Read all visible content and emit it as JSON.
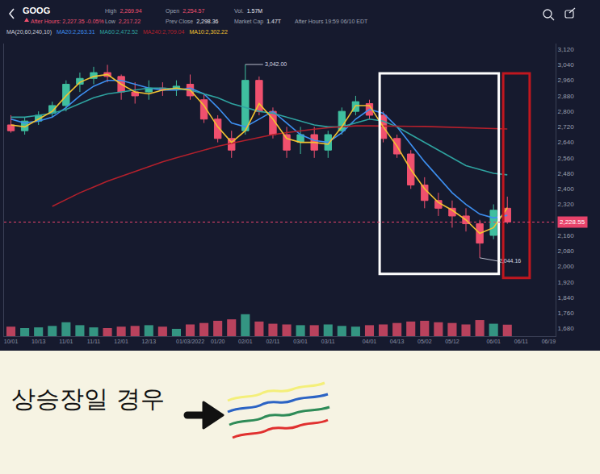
{
  "header": {
    "symbol": "GOOG",
    "after_hours": "After Hours: 2,227.35 -0.05%",
    "stats": [
      [
        "High",
        "2,269.94"
      ],
      [
        "Low",
        "2,217.22"
      ],
      [
        "Open",
        "2,254.57"
      ],
      [
        "Prev Close",
        "2,298.36"
      ],
      [
        "Vol.",
        "1.57M"
      ],
      [
        "Market Cap",
        "1.47T"
      ]
    ],
    "time": "After Hours 19:59 06/10 EDT"
  },
  "chart_data": {
    "type": "candlestick",
    "legend": "top-left",
    "legend_title": "MA(20,60,240,10)",
    "grid": false,
    "categories": [
      "10/01",
      null,
      "10/13",
      null,
      "11/01",
      null,
      "11/11",
      null,
      "12/01",
      null,
      "12/13",
      null,
      null,
      "01/03/2022",
      null,
      "01/20",
      null,
      "02/01",
      null,
      "02/11",
      null,
      "03/01",
      null,
      "03/11",
      null,
      null,
      "04/01",
      null,
      "04/13",
      null,
      "05/02",
      null,
      "05/12",
      null,
      null,
      "06/01",
      null,
      "06/11",
      null,
      "06/19"
    ],
    "series": [
      {
        "type": "bar",
        "axis": "y2",
        "values": [
          1.3,
          1.1,
          1.2,
          1.4,
          1.9,
          1.5,
          1.2,
          1.1,
          1.3,
          1.4,
          1.5,
          1.3,
          1.0,
          1.6,
          1.8,
          2.1,
          2.3,
          3.0,
          2.0,
          1.7,
          1.6,
          1.5,
          1.5,
          1.6,
          1.4,
          1.3,
          1.5,
          1.6,
          1.8,
          2.0,
          2.1,
          1.9,
          1.8,
          1.6,
          2.2,
          1.7,
          1.57,
          null,
          null,
          null
        ]
      },
      {
        "name": "GOOG",
        "type": "candlestick",
        "open": [
          2730,
          2700,
          2750,
          2790,
          2830,
          2940,
          2970,
          3000,
          2980,
          2900,
          2900,
          2920,
          2920,
          2940,
          2860,
          2760,
          2660,
          2700,
          2960,
          2800,
          2680,
          2640,
          2680,
          2600,
          2700,
          2800,
          2840,
          2780,
          2660,
          2580,
          2420,
          2340,
          2300,
          2260,
          2220,
          2160,
          2300,
          null,
          null,
          null
        ],
        "high": [
          2780,
          2770,
          2800,
          2850,
          2960,
          3000,
          3030,
          3040,
          2990,
          2950,
          2960,
          2950,
          2960,
          2990,
          2890,
          2780,
          2700,
          3042,
          2980,
          2820,
          2720,
          2720,
          2720,
          2700,
          2820,
          2880,
          2860,
          2800,
          2680,
          2600,
          2460,
          2380,
          2340,
          2300,
          2240,
          2320,
          2360,
          null,
          null,
          null
        ],
        "low": [
          2690,
          2680,
          2730,
          2770,
          2800,
          2900,
          2940,
          2950,
          2860,
          2840,
          2860,
          2880,
          2880,
          2860,
          2740,
          2640,
          2560,
          2680,
          2780,
          2660,
          2560,
          2580,
          2560,
          2560,
          2680,
          2780,
          2760,
          2640,
          2560,
          2400,
          2300,
          2260,
          2200,
          2180,
          2044.16,
          2140,
          2220,
          null,
          null,
          null
        ],
        "close": [
          2700,
          2750,
          2780,
          2830,
          2940,
          2970,
          3000,
          2980,
          2900,
          2880,
          2920,
          2910,
          2930,
          2880,
          2760,
          2660,
          2600,
          2960,
          2800,
          2680,
          2600,
          2680,
          2600,
          2680,
          2800,
          2850,
          2780,
          2660,
          2580,
          2420,
          2340,
          2300,
          2260,
          2220,
          2120,
          2290,
          2228.55,
          null,
          null,
          null
        ]
      },
      {
        "name": "MA20:2,263.31",
        "type": "line",
        "color": "#3d8ff0",
        "values": [
          2760,
          2740,
          2750,
          2770,
          2820,
          2880,
          2930,
          2960,
          2960,
          2940,
          2920,
          2910,
          2910,
          2920,
          2890,
          2820,
          2740,
          2720,
          2760,
          2800,
          2740,
          2680,
          2650,
          2640,
          2690,
          2760,
          2810,
          2790,
          2720,
          2630,
          2540,
          2460,
          2380,
          2320,
          2270,
          2250,
          2263.31,
          null,
          null,
          null
        ]
      },
      {
        "name": "MA60:2,472.52",
        "type": "line",
        "color": "#2fa3a0",
        "values": [
          2770,
          2770,
          2780,
          2790,
          2810,
          2840,
          2870,
          2890,
          2900,
          2910,
          2920,
          2920,
          2915,
          2910,
          2890,
          2870,
          2840,
          2820,
          2800,
          2790,
          2770,
          2750,
          2730,
          2720,
          2720,
          2740,
          2760,
          2750,
          2720,
          2680,
          2640,
          2600,
          2560,
          2520,
          2500,
          2480,
          2472.52,
          null,
          null,
          null
        ]
      },
      {
        "name": "MA240:2,709.04",
        "type": "line",
        "color": "#b3202c",
        "values": [
          null,
          null,
          null,
          2310,
          2345,
          2380,
          2410,
          2440,
          2465,
          2490,
          2515,
          2540,
          2560,
          2580,
          2600,
          2620,
          2635,
          2650,
          2665,
          2680,
          2690,
          2700,
          2708,
          2715,
          2720,
          2725,
          2725,
          2725,
          2725,
          2725,
          2722,
          2720,
          2718,
          2715,
          2713,
          2711,
          2709.04,
          null,
          null,
          null
        ]
      },
      {
        "name": "MA10:2,302.22",
        "type": "line",
        "color": "#f2c230",
        "values": [
          2730,
          2720,
          2760,
          2800,
          2880,
          2950,
          2980,
          2990,
          2940,
          2900,
          2890,
          2910,
          2920,
          2910,
          2830,
          2720,
          2640,
          2700,
          2840,
          2760,
          2660,
          2640,
          2640,
          2630,
          2720,
          2830,
          2830,
          2720,
          2620,
          2500,
          2400,
          2330,
          2290,
          2240,
          2170,
          2200,
          2302.22,
          null,
          null,
          null
        ]
      }
    ],
    "ylim": [
      1640,
      3150
    ],
    "yticks": [
      {
        "value": 1680,
        "label": "1,680"
      },
      {
        "value": 1760,
        "label": "1,760"
      },
      {
        "value": 1840,
        "label": "1,840"
      },
      {
        "value": 1920,
        "label": "1,920"
      },
      {
        "value": 2000,
        "label": "2,000"
      },
      {
        "value": 2080,
        "label": "2,080"
      },
      {
        "value": 2160,
        "label": "2,160"
      },
      {
        "value": 2320,
        "label": "2,320"
      },
      {
        "value": 2400,
        "label": "2,400"
      },
      {
        "value": 2480,
        "label": "2,480"
      },
      {
        "value": 2560,
        "label": "2,560"
      },
      {
        "value": 2640,
        "label": "2,640"
      },
      {
        "value": 2720,
        "label": "2,720"
      },
      {
        "value": 2800,
        "label": "2,800"
      },
      {
        "value": 2880,
        "label": "2,880"
      },
      {
        "value": 2960,
        "label": "2,960"
      },
      {
        "value": 3040,
        "label": "3,040"
      },
      {
        "value": 3120,
        "label": "3,120"
      }
    ],
    "y2lim": [
      0,
      40
    ],
    "y2ticks": [],
    "annotations": [
      {
        "text": "3,042.00",
        "x": 17,
        "y": 3042
      },
      {
        "text": "2,044.16",
        "x": 34,
        "y": 2044.16
      }
    ],
    "last_price": {
      "value": 2228.55,
      "label": "2,228.55"
    }
  },
  "note": {
    "text": "상승장일 경우"
  }
}
